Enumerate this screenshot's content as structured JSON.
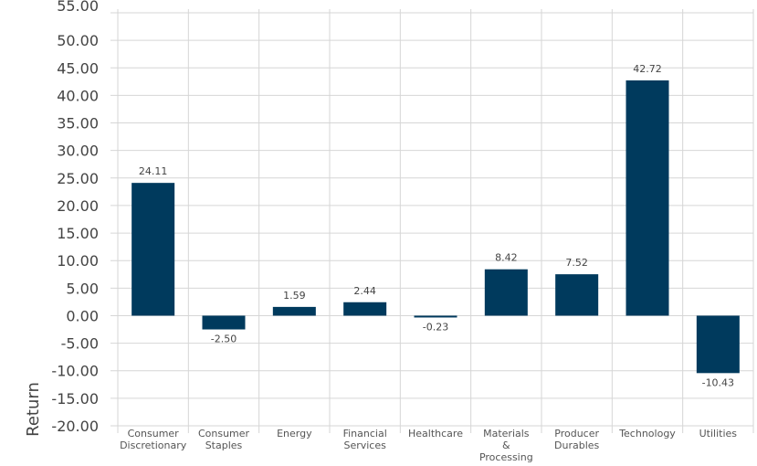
{
  "chart_data": {
    "type": "bar",
    "ylabel": "Return",
    "xlabel": "",
    "title": "",
    "ylim": [
      -20,
      55
    ],
    "yticks": [
      "55.00",
      "50.00",
      "45.00",
      "40.00",
      "35.00",
      "30.00",
      "25.00",
      "20.00",
      "15.00",
      "10.00",
      "5.00",
      "0.00",
      "-5.00",
      "-10.00",
      "-15.00",
      "-20.00"
    ],
    "grid": true,
    "bar_color": "#003a5d",
    "categories": [
      [
        "Consumer",
        "Discretionary"
      ],
      [
        "Consumer",
        "Staples"
      ],
      [
        "Energy"
      ],
      [
        "Financial",
        "Services"
      ],
      [
        "Healthcare"
      ],
      [
        "Materials",
        "&",
        "Processing"
      ],
      [
        "Producer",
        "Durables"
      ],
      [
        "Technology"
      ],
      [
        "Utilities"
      ]
    ],
    "values": [
      24.11,
      -2.5,
      1.59,
      2.44,
      -0.23,
      8.42,
      7.52,
      42.72,
      -10.43
    ],
    "data_labels": [
      "24.11",
      "-2.50",
      "1.59",
      "2.44",
      "-0.23",
      "8.42",
      "7.52",
      "42.72",
      "-10.43"
    ]
  }
}
